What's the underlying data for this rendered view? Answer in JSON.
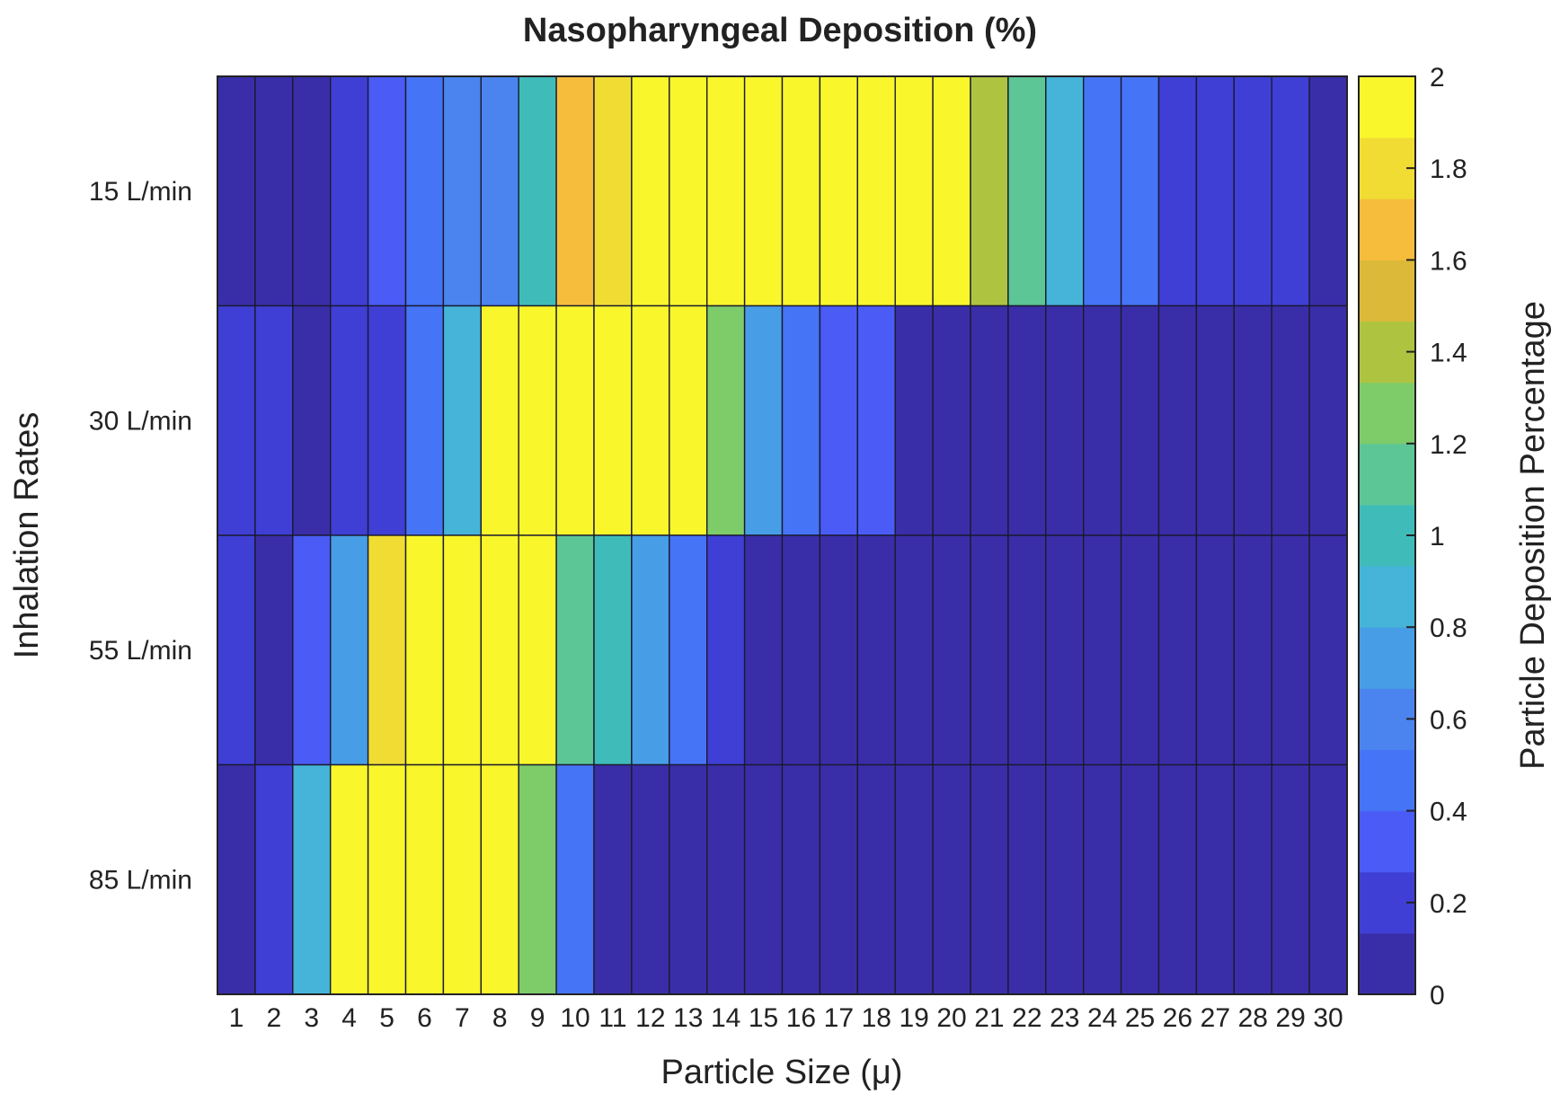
{
  "chart_data": {
    "type": "heatmap",
    "title": "Nasopharyngeal Deposition (%)",
    "xlabel": "Particle Size (μ)",
    "ylabel": "Inhalation Rates",
    "colorbar_label": "Particle Deposition Percentage",
    "x_categories": [
      "1",
      "2",
      "3",
      "4",
      "5",
      "6",
      "7",
      "8",
      "9",
      "10",
      "11",
      "12",
      "13",
      "14",
      "15",
      "16",
      "17",
      "18",
      "19",
      "20",
      "21",
      "22",
      "23",
      "24",
      "25",
      "26",
      "27",
      "28",
      "29",
      "30"
    ],
    "y_categories": [
      "15 L/min",
      "30 L/min",
      "55 L/min",
      "85 L/min"
    ],
    "values": [
      [
        0.05,
        0.05,
        0.08,
        0.2,
        0.35,
        0.45,
        0.65,
        0.6,
        1.05,
        1.7,
        1.85,
        2.0,
        2.0,
        2.0,
        2.0,
        2.0,
        2.0,
        2.0,
        2.0,
        2.0,
        1.45,
        1.15,
        0.85,
        0.45,
        0.45,
        0.15,
        0.15,
        0.2,
        0.2,
        0.05
      ],
      [
        0.2,
        0.2,
        0.05,
        0.15,
        0.15,
        0.45,
        0.85,
        2.0,
        2.0,
        2.0,
        2.0,
        2.0,
        2.0,
        1.3,
        0.7,
        0.45,
        0.35,
        0.35,
        0.05,
        0.05,
        0.05,
        0.05,
        0.05,
        0.05,
        0.05,
        0.05,
        0.05,
        0.05,
        0.05,
        0.05
      ],
      [
        0.2,
        0.05,
        0.35,
        0.75,
        1.85,
        2.0,
        2.0,
        2.0,
        2.0,
        1.15,
        1.05,
        0.7,
        0.45,
        0.15,
        0.05,
        0.05,
        0.05,
        0.05,
        0.05,
        0.05,
        0.05,
        0.05,
        0.05,
        0.05,
        0.05,
        0.05,
        0.05,
        0.05,
        0.05,
        0.05
      ],
      [
        0.05,
        0.2,
        0.85,
        2.0,
        2.0,
        2.0,
        2.0,
        2.0,
        1.3,
        0.45,
        0.05,
        0.05,
        0.05,
        0.05,
        0.05,
        0.05,
        0.05,
        0.05,
        0.05,
        0.05,
        0.05,
        0.05,
        0.05,
        0.05,
        0.05,
        0.05,
        0.05,
        0.05,
        0.05,
        0.05
      ]
    ],
    "clim": [
      0,
      2
    ],
    "colorbar_ticks": [
      "0",
      "0.2",
      "0.4",
      "0.6",
      "0.8",
      "1",
      "1.2",
      "1.4",
      "1.6",
      "1.8",
      "2"
    ],
    "colormap": [
      "#3a2ea8",
      "#3f3fd6",
      "#4a5cf5",
      "#4674f7",
      "#4b84ee",
      "#479ee6",
      "#45b4d8",
      "#3fbcba",
      "#5cc696",
      "#7ecb6a",
      "#aec441",
      "#dcb938",
      "#f6bc3b",
      "#f1dc34",
      "#f9f62b"
    ]
  }
}
